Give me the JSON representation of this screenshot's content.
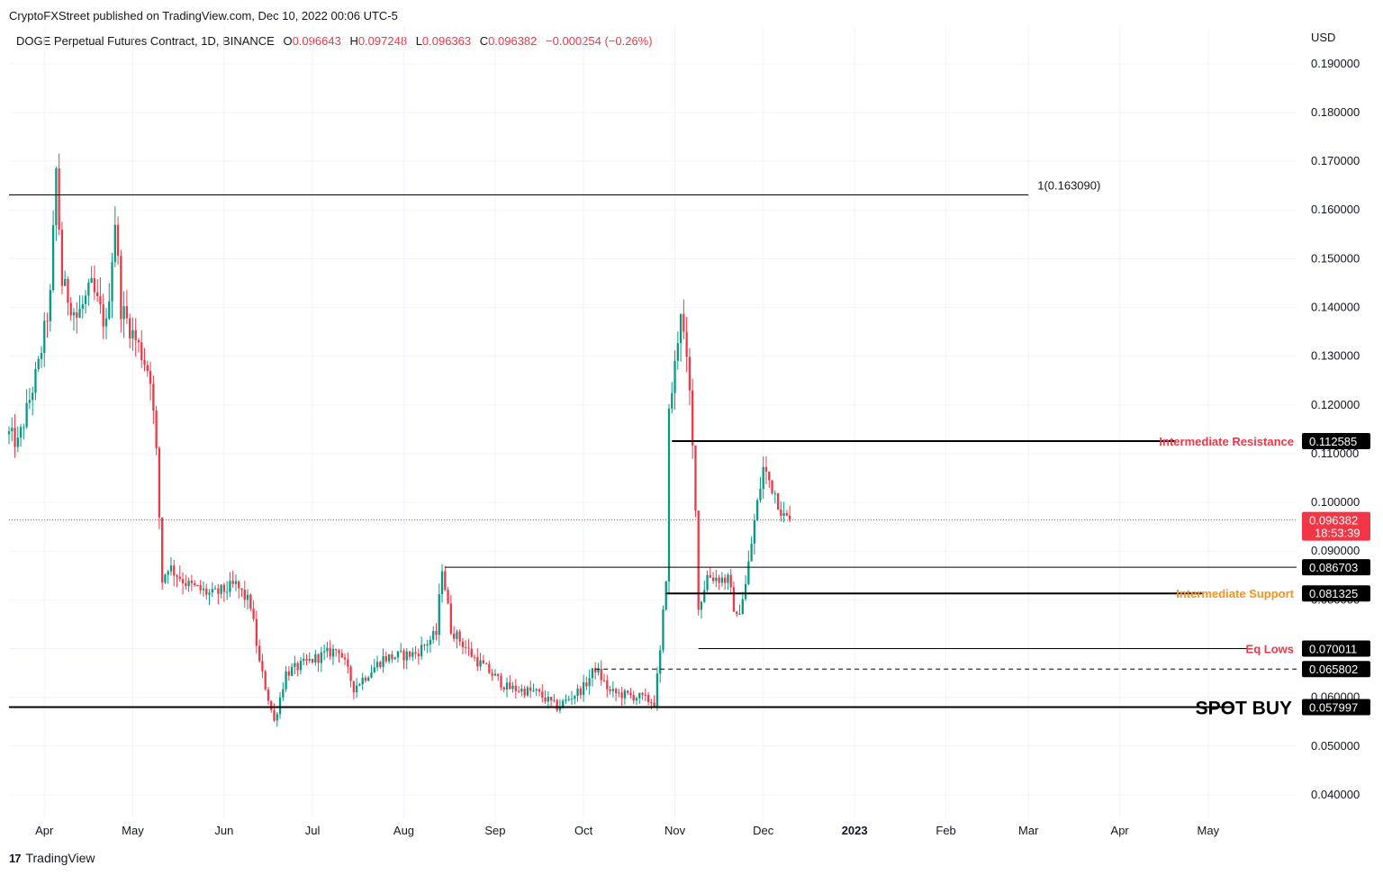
{
  "header": {
    "published": "CryptoFXStreet published on TradingView.com, Dec 10, 2022 00:06 UTC-5"
  },
  "legend": {
    "symbol": "DOGE Perpetual Futures Contract, 1D, BINANCE",
    "o_label": "O",
    "o_value": "0.096643",
    "h_label": "H",
    "h_value": "0.097248",
    "l_label": "L",
    "l_value": "0.096363",
    "c_label": "C",
    "c_value": "0.096382",
    "change": "−0.000254 (−0.26%)"
  },
  "footer": {
    "brand": "TradingView",
    "logo": "17"
  },
  "colors": {
    "up": "#089981",
    "down": "#f23645",
    "grid": "#f0f3fa",
    "orange": "#f7931a"
  },
  "chart_data": {
    "type": "candlestick",
    "currency_label": "USD",
    "ylim": [
      0.035,
      0.192
    ],
    "y_ticks": [
      "0.040000",
      "0.050000",
      "0.060000",
      "0.070000",
      "0.080000",
      "0.090000",
      "0.100000",
      "0.110000",
      "0.120000",
      "0.130000",
      "0.140000",
      "0.150000",
      "0.160000",
      "0.170000",
      "0.180000",
      "0.190000"
    ],
    "x_range": [
      "2022-03-20",
      "2023-05-31"
    ],
    "x_ticks": [
      {
        "date": "2022-04-01",
        "label": "Apr",
        "bold": false
      },
      {
        "date": "2022-05-01",
        "label": "May",
        "bold": false
      },
      {
        "date": "2022-06-01",
        "label": "Jun",
        "bold": false
      },
      {
        "date": "2022-07-01",
        "label": "Jul",
        "bold": false
      },
      {
        "date": "2022-08-01",
        "label": "Aug",
        "bold": false
      },
      {
        "date": "2022-09-01",
        "label": "Sep",
        "bold": false
      },
      {
        "date": "2022-10-01",
        "label": "Oct",
        "bold": false
      },
      {
        "date": "2022-11-01",
        "label": "Nov",
        "bold": false
      },
      {
        "date": "2022-12-01",
        "label": "Dec",
        "bold": false
      },
      {
        "date": "2023-01-01",
        "label": "2023",
        "bold": true
      },
      {
        "date": "2023-02-01",
        "label": "Feb",
        "bold": false
      },
      {
        "date": "2023-03-01",
        "label": "Mar",
        "bold": false
      },
      {
        "date": "2023-04-01",
        "label": "Apr",
        "bold": false
      },
      {
        "date": "2023-05-01",
        "label": "May",
        "bold": false
      }
    ],
    "price_anchors": [
      [
        "2022-03-20",
        0.114
      ],
      [
        "2022-03-23",
        0.112
      ],
      [
        "2022-03-30",
        0.128
      ],
      [
        "2022-04-03",
        0.142
      ],
      [
        "2022-04-05",
        0.168
      ],
      [
        "2022-04-07",
        0.145
      ],
      [
        "2022-04-12",
        0.138
      ],
      [
        "2022-04-17",
        0.144
      ],
      [
        "2022-04-22",
        0.136
      ],
      [
        "2022-04-25",
        0.158
      ],
      [
        "2022-04-27",
        0.14
      ],
      [
        "2022-05-03",
        0.132
      ],
      [
        "2022-05-07",
        0.126
      ],
      [
        "2022-05-09",
        0.11
      ],
      [
        "2022-05-11",
        0.084
      ],
      [
        "2022-05-13",
        0.087
      ],
      [
        "2022-05-20",
        0.083
      ],
      [
        "2022-05-28",
        0.081
      ],
      [
        "2022-06-05",
        0.083
      ],
      [
        "2022-06-10",
        0.079
      ],
      [
        "2022-06-13",
        0.067
      ],
      [
        "2022-06-18",
        0.055
      ],
      [
        "2022-06-22",
        0.065
      ],
      [
        "2022-07-02",
        0.068
      ],
      [
        "2022-07-10",
        0.07
      ],
      [
        "2022-07-15",
        0.062
      ],
      [
        "2022-07-25",
        0.068
      ],
      [
        "2022-08-05",
        0.069
      ],
      [
        "2022-08-12",
        0.073
      ],
      [
        "2022-08-14",
        0.087
      ],
      [
        "2022-08-17",
        0.074
      ],
      [
        "2022-08-25",
        0.068
      ],
      [
        "2022-09-05",
        0.062
      ],
      [
        "2022-09-15",
        0.061
      ],
      [
        "2022-09-22",
        0.058
      ],
      [
        "2022-10-01",
        0.062
      ],
      [
        "2022-10-05",
        0.066
      ],
      [
        "2022-10-10",
        0.061
      ],
      [
        "2022-10-20",
        0.06
      ],
      [
        "2022-10-25",
        0.059
      ],
      [
        "2022-10-27",
        0.069
      ],
      [
        "2022-10-29",
        0.085
      ],
      [
        "2022-10-30",
        0.118
      ],
      [
        "2022-11-01",
        0.128
      ],
      [
        "2022-11-03",
        0.14
      ],
      [
        "2022-11-06",
        0.122
      ],
      [
        "2022-11-08",
        0.1
      ],
      [
        "2022-11-09",
        0.078
      ],
      [
        "2022-11-12",
        0.085
      ],
      [
        "2022-11-19",
        0.084
      ],
      [
        "2022-11-22",
        0.076
      ],
      [
        "2022-11-25",
        0.083
      ],
      [
        "2022-11-28",
        0.096
      ],
      [
        "2022-12-01",
        0.107
      ],
      [
        "2022-12-05",
        0.102
      ],
      [
        "2022-12-08",
        0.097
      ],
      [
        "2022-12-10",
        0.0964
      ]
    ],
    "horizontal_lines": [
      {
        "price": 0.16309,
        "from": "2022-03-20",
        "to": "2023-03-01",
        "style": "thin",
        "label": "1(0.163090)",
        "label_color": "#131722",
        "tag": "",
        "label_pos": "end"
      },
      {
        "price": 0.112585,
        "from": "2022-10-31",
        "to": "2023-04-20",
        "style": "thick",
        "label": "Intermediate Resistance",
        "label_color": "#f23645",
        "tag": "0.112585",
        "label_pos": "right"
      },
      {
        "price": 0.086703,
        "from": "2022-08-15",
        "to": "2023-05-31",
        "style": "thin",
        "label": "",
        "label_color": "#131722",
        "tag": "0.086703",
        "label_pos": "right"
      },
      {
        "price": 0.081325,
        "from": "2022-10-29",
        "to": "2023-04-29",
        "style": "thick",
        "label": "Intermediate Support",
        "label_color": "#f7931a",
        "tag": "0.081325",
        "label_pos": "right"
      },
      {
        "price": 0.070011,
        "from": "2022-11-09",
        "to": "2023-05-16",
        "style": "thin",
        "label": "Eq Lows",
        "label_color": "#f23645",
        "tag": "0.070011",
        "label_pos": "right"
      },
      {
        "price": 0.065802,
        "from": "2022-10-05",
        "to": "2023-05-31",
        "style": "dashed",
        "label": "",
        "label_color": "#131722",
        "tag": "0.065802",
        "label_pos": "right"
      },
      {
        "price": 0.057997,
        "from": "2022-03-20",
        "to": "2023-05-09",
        "style": "thick",
        "label": "SPOT BUY",
        "label_color": "#000000",
        "tag": "0.057997",
        "label_pos": "right_big"
      }
    ],
    "last_price": {
      "price": 0.096382,
      "label": "0.096382",
      "countdown": "18:53:39",
      "date": "2022-12-10"
    }
  }
}
